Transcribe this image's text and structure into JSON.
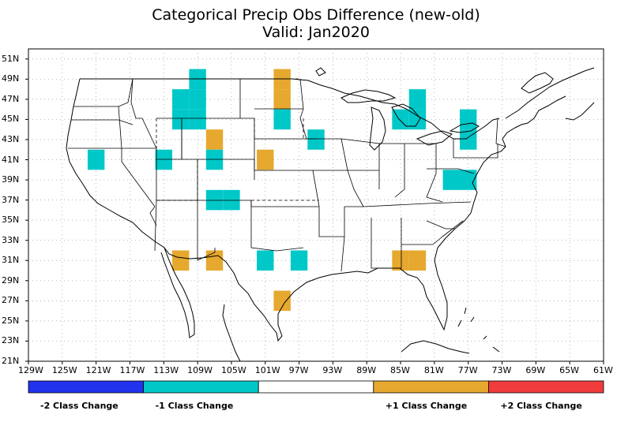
{
  "title": "Categorical Precip Obs Difference (new-old)",
  "subtitle": "Valid: Jan2020",
  "map": {
    "lon_range": [
      -129,
      -61
    ],
    "lat_range": [
      21,
      52
    ],
    "lat_ticks": [
      "21N",
      "23N",
      "25N",
      "27N",
      "29N",
      "31N",
      "33N",
      "35N",
      "37N",
      "39N",
      "41N",
      "43N",
      "45N",
      "47N",
      "49N",
      "51N"
    ],
    "lon_ticks": [
      "129W",
      "125W",
      "121W",
      "117W",
      "113W",
      "109W",
      "105W",
      "101W",
      "97W",
      "93W",
      "89W",
      "85W",
      "81W",
      "77W",
      "73W",
      "69W",
      "65W",
      "61W"
    ],
    "grid": true
  },
  "cells": [
    {
      "lon": -111,
      "lat": 47,
      "class": -1
    },
    {
      "lon": -109,
      "lat": 47,
      "class": -1
    },
    {
      "lon": -109,
      "lat": 49,
      "class": -1
    },
    {
      "lon": -111,
      "lat": 45,
      "class": -1
    },
    {
      "lon": -109,
      "lat": 45,
      "class": -1
    },
    {
      "lon": -99,
      "lat": 47,
      "class": 1
    },
    {
      "lon": -99,
      "lat": 49,
      "class": 1
    },
    {
      "lon": -99,
      "lat": 45,
      "class": -1
    },
    {
      "lon": -95,
      "lat": 43,
      "class": -1
    },
    {
      "lon": -85,
      "lat": 45,
      "class": -1
    },
    {
      "lon": -83,
      "lat": 45,
      "class": -1
    },
    {
      "lon": -83,
      "lat": 47,
      "class": -1
    },
    {
      "lon": -77,
      "lat": 43,
      "class": -1
    },
    {
      "lon": -77,
      "lat": 45,
      "class": -1
    },
    {
      "lon": -107,
      "lat": 43,
      "class": 1
    },
    {
      "lon": -107,
      "lat": 41,
      "class": -1
    },
    {
      "lon": -101,
      "lat": 41,
      "class": 1
    },
    {
      "lon": -121,
      "lat": 41,
      "class": -1
    },
    {
      "lon": -113,
      "lat": 41,
      "class": -1
    },
    {
      "lon": -79,
      "lat": 39,
      "class": -1
    },
    {
      "lon": -77,
      "lat": 39,
      "class": -1
    },
    {
      "lon": -107,
      "lat": 37,
      "class": -1
    },
    {
      "lon": -105,
      "lat": 37,
      "class": -1
    },
    {
      "lon": -111,
      "lat": 31,
      "class": 1
    },
    {
      "lon": -107,
      "lat": 31,
      "class": 1
    },
    {
      "lon": -101,
      "lat": 31,
      "class": -1
    },
    {
      "lon": -97,
      "lat": 31,
      "class": -1
    },
    {
      "lon": -85,
      "lat": 31,
      "class": 1
    },
    {
      "lon": -83,
      "lat": 31,
      "class": 1
    },
    {
      "lon": -99,
      "lat": 27,
      "class": 1
    }
  ],
  "legend": [
    {
      "label": "-2 Class Change",
      "color": "#2233ee"
    },
    {
      "label": "-1 Class Change",
      "color": "#00c8c8"
    },
    {
      "label": "",
      "color": "#ffffff"
    },
    {
      "label": "+1 Class Change",
      "color": "#e6a82e"
    },
    {
      "label": "+2 Class Change",
      "color": "#f03c3c"
    }
  ]
}
